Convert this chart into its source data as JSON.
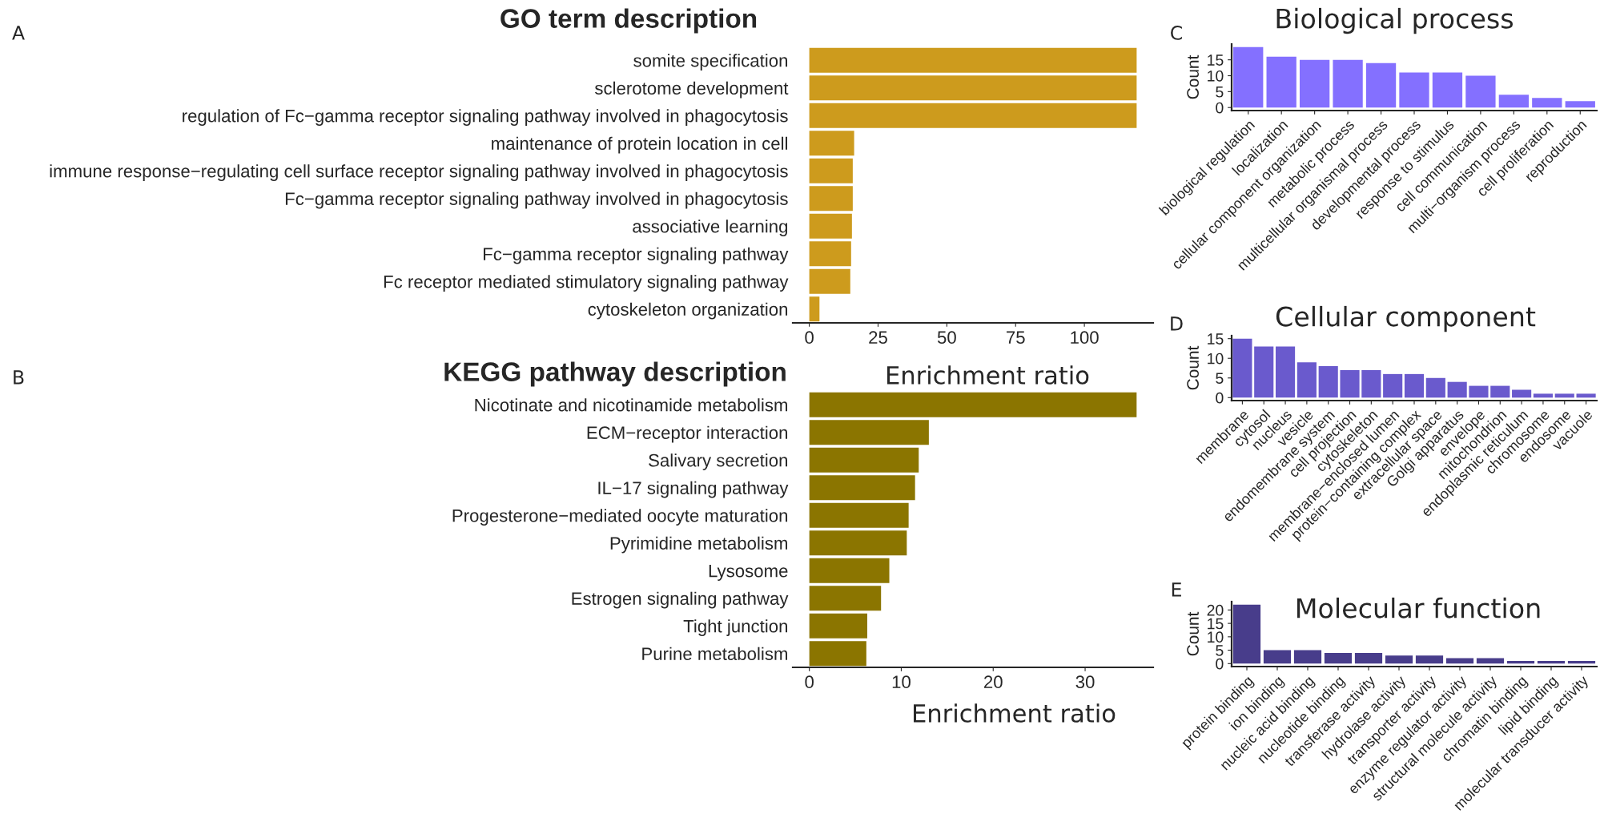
{
  "chart_data": [
    {
      "type": "bar",
      "orientation": "horizontal",
      "title": "GO term description",
      "xlabel": "Enrichment ratio",
      "annotations": [
        "A"
      ],
      "categories": [
        "somite specification",
        "sclerotome development",
        "regulation of Fc−gamma receptor signaling pathway involved in phagocytosis",
        "maintenance of protein location in cell",
        "immune response−regulating cell surface receptor signaling pathway involved in phagocytosis",
        "Fc−gamma receptor signaling pathway involved in phagocytosis",
        "associative learning",
        "Fc−gamma receptor signaling pathway",
        "Fc receptor mediated stimulatory signaling pathway",
        "cytoskeleton organization"
      ],
      "values": [
        119,
        119,
        119,
        16.3,
        15.8,
        15.8,
        15.5,
        15.2,
        14.9,
        3.7
      ],
      "color": "#cd9b1d",
      "xlim": [
        -6,
        125
      ],
      "xticks": [
        0,
        25,
        50,
        75,
        100
      ],
      "grid": false
    },
    {
      "type": "bar",
      "orientation": "horizontal",
      "title": "KEGG pathway description",
      "xlabel": "Enrichment ratio",
      "annotations": [
        "B"
      ],
      "categories": [
        "Nicotinate and nicotinamide metabolism",
        "ECM−receptor interaction",
        "Salivary secretion",
        "IL−17 signaling pathway",
        "Progesterone−mediated oocyte maturation",
        "Pyrimidine metabolism",
        "Lysosome",
        "Estrogen signaling pathway",
        "Tight junction",
        "Purine metabolism"
      ],
      "values": [
        35.6,
        13.0,
        11.9,
        11.5,
        10.8,
        10.6,
        8.7,
        7.8,
        6.3,
        6.2
      ],
      "color": "#8b7500",
      "xlim": [
        -1.8,
        37.4
      ],
      "xticks": [
        0,
        10,
        20,
        30
      ],
      "grid": false
    },
    {
      "type": "bar",
      "title": "Biological process",
      "ylabel": "Count",
      "annotations": [
        "C"
      ],
      "categories": [
        "biological regulation",
        "localization",
        "cellular component organization",
        "metabolic process",
        "multicellular organismal process",
        "developmental process",
        "response to stimulus",
        "cell communication",
        "multi−organism process",
        "cell proliferation",
        "reproduction"
      ],
      "values": [
        19,
        16,
        15,
        15,
        14,
        11,
        11,
        10,
        4,
        3,
        2
      ],
      "color": "#8470ff",
      "ylim": [
        -0.95,
        19.95
      ],
      "yticks": [
        0,
        5,
        10,
        15
      ],
      "grid": false
    },
    {
      "type": "bar",
      "title": "Cellular component",
      "ylabel": "Count",
      "annotations": [
        "D"
      ],
      "categories": [
        "membrane",
        "cytosol",
        "nucleus",
        "vesicle",
        "endomembrane system",
        "cell projection",
        "cytoskeleton",
        "membrane−enclosed lumen",
        "protein−containing complex",
        "extracellular space",
        "Golgi apparatus",
        "envelope",
        "mitochondrion",
        "endoplasmic reticulum",
        "chromosome",
        "endosome",
        "vacuole"
      ],
      "values": [
        15,
        13,
        13,
        9,
        8,
        7,
        7,
        6,
        6,
        5,
        4,
        3,
        3,
        2,
        1,
        1,
        1
      ],
      "color": "#6a5acd",
      "ylim": [
        -0.75,
        15.75
      ],
      "yticks": [
        0,
        5,
        10,
        15
      ],
      "grid": false
    },
    {
      "type": "bar",
      "title": "Molecular function",
      "ylabel": "Count",
      "annotations": [
        "E"
      ],
      "categories": [
        "protein binding",
        "ion binding",
        "nucleic acid binding",
        "nucleotide binding",
        "transferase activity",
        "hydrolase activity",
        "transporter activity",
        "enzyme regulator activity",
        "structural molecule activity",
        "chromatin binding",
        "lipid binding",
        "molecular transducer activity"
      ],
      "values": [
        22,
        5,
        5,
        4,
        4,
        3,
        3,
        2,
        2,
        1,
        1,
        1
      ],
      "color": "#483d8b",
      "ylim": [
        -1.1,
        23.1
      ],
      "yticks": [
        0,
        5,
        10,
        15,
        20
      ],
      "grid": false
    }
  ]
}
